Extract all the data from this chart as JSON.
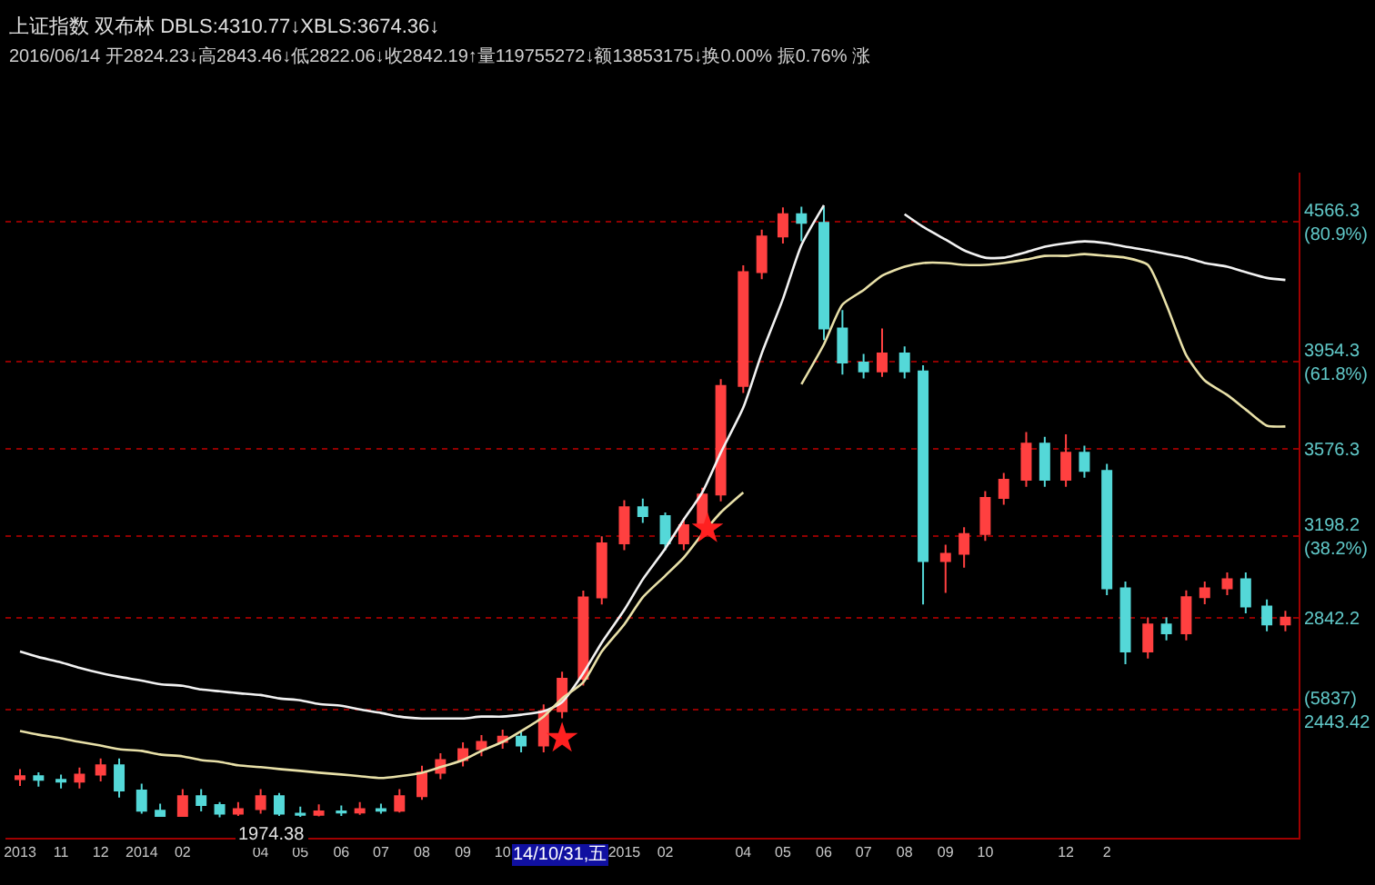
{
  "chart_data": {
    "type": "candlestick",
    "title": "上证指数 双布林 DBLS:4310.77↓XBLS:3674.36↓",
    "subtitle": "2016/06/14 开2824.23↓高2843.46↓低2822.06↓收2842.19↑量119755272↓额13853175↓换0.00% 振0.76% 涨",
    "x": [
      "2013-10-01",
      "2013-10-15",
      "2013-11-01",
      "2013-11-15",
      "2013-12-01",
      "2013-12-15",
      "2014-01-01",
      "2014-01-15",
      "2014-02-01",
      "2014-02-15",
      "2014-03-01",
      "2014-03-15",
      "2014-04-01",
      "2014-04-15",
      "2014-05-01",
      "2014-05-15",
      "2014-06-01",
      "2014-06-15",
      "2014-07-01",
      "2014-07-15",
      "2014-08-01",
      "2014-08-15",
      "2014-09-01",
      "2014-09-15",
      "2014-10-01",
      "2014-10-15",
      "2014-11-01",
      "2014-11-15",
      "2014-12-01",
      "2014-12-15",
      "2015-01-01",
      "2015-01-15",
      "2015-02-01",
      "2015-02-15",
      "2015-03-01",
      "2015-03-15",
      "2015-04-01",
      "2015-04-15",
      "2015-05-01",
      "2015-05-15",
      "2015-06-01",
      "2015-06-15",
      "2015-07-01",
      "2015-07-15",
      "2015-08-01",
      "2015-08-15",
      "2015-09-01",
      "2015-09-15",
      "2015-10-01",
      "2015-10-15",
      "2015-11-01",
      "2015-11-15",
      "2015-12-01",
      "2015-12-15",
      "2016-01-01",
      "2016-01-15",
      "2016-02-01",
      "2016-02-15",
      "2016-03-01",
      "2016-03-15",
      "2016-04-01",
      "2016-04-15",
      "2016-05-01",
      "2016-05-15"
    ],
    "ohlc": [
      [
        2140,
        2183,
        2110,
        2153
      ],
      [
        2153,
        2170,
        2107,
        2137
      ],
      [
        2137,
        2160,
        2099,
        2129
      ],
      [
        2129,
        2190,
        2099,
        2160
      ],
      [
        2160,
        2230,
        2130,
        2200
      ],
      [
        2200,
        2230,
        2060,
        2090
      ],
      [
        2090,
        2120,
        1990,
        2003
      ],
      [
        2003,
        2033,
        1976,
        1980
      ],
      [
        1980,
        2096,
        1976,
        2066
      ],
      [
        2066,
        2096,
        2000,
        2027
      ],
      [
        2027,
        2040,
        1974.38,
        1990
      ],
      [
        1990,
        2040,
        1980,
        2010
      ],
      [
        2010,
        2096,
        1990,
        2066
      ],
      [
        2066,
        2080,
        1980,
        1990
      ],
      [
        1990,
        2020,
        1976,
        1985
      ],
      [
        1985,
        2030,
        1978,
        2000
      ],
      [
        2000,
        2025,
        1980,
        1995
      ],
      [
        1995,
        2040,
        1985,
        2010
      ],
      [
        2010,
        2033,
        1990,
        2003
      ],
      [
        2003,
        2096,
        1995,
        2066
      ],
      [
        2066,
        2198,
        2050,
        2168
      ],
      [
        2168,
        2253,
        2140,
        2223
      ],
      [
        2223,
        2300,
        2195,
        2270
      ],
      [
        2270,
        2332,
        2240,
        2302
      ],
      [
        2302,
        2355,
        2272,
        2325
      ],
      [
        2325,
        2345,
        2256,
        2286
      ],
      [
        2286,
        2465,
        2256,
        2435
      ],
      [
        2435,
        2607,
        2405,
        2577
      ],
      [
        2577,
        2960,
        2547,
        2930
      ],
      [
        2930,
        3196,
        2900,
        3166
      ],
      [
        3166,
        3353,
        3136,
        3323
      ],
      [
        3323,
        3360,
        3254,
        3284
      ],
      [
        3284,
        3300,
        3136,
        3166
      ],
      [
        3166,
        3275,
        3136,
        3245
      ],
      [
        3245,
        3408,
        3215,
        3378
      ],
      [
        3378,
        3880,
        3348,
        3850
      ],
      [
        3850,
        4375,
        3820,
        4345
      ],
      [
        4345,
        4530,
        4315,
        4500
      ],
      [
        4500,
        4627,
        4470,
        4597
      ],
      [
        4597,
        4630,
        4480,
        4560
      ],
      [
        4560,
        4630,
        4050,
        4100
      ],
      [
        4100,
        4180,
        3900,
        3952
      ],
      [
        3952,
        3990,
        3883,
        3913
      ],
      [
        3913,
        4100,
        3890,
        3992
      ],
      [
        3992,
        4022,
        3883,
        3913
      ],
      [
        3913,
        3940,
        2900,
        3088
      ],
      [
        3088,
        3160,
        2950,
        3120
      ],
      [
        3120,
        3236,
        3060,
        3206
      ],
      [
        3206,
        3393,
        3176,
        3363
      ],
      [
        3363,
        3472,
        3333,
        3442
      ],
      [
        3442,
        3650,
        3412,
        3599
      ],
      [
        3599,
        3629,
        3412,
        3442
      ],
      [
        3442,
        3640,
        3412,
        3560
      ],
      [
        3560,
        3590,
        3451,
        3481
      ],
      [
        3481,
        3511,
        2940,
        2970
      ],
      [
        2970,
        3000,
        2640,
        2695
      ],
      [
        2695,
        2843,
        2665,
        2813
      ],
      [
        2813,
        2843,
        2744,
        2774
      ],
      [
        2774,
        2961,
        2744,
        2931
      ],
      [
        2931,
        3000,
        2901,
        2970
      ],
      [
        2970,
        3039,
        2940,
        3009
      ],
      [
        3009,
        3039,
        2861,
        2891
      ],
      [
        2891,
        2921,
        2783,
        2813
      ],
      [
        2813,
        2872,
        2783,
        2842.19
      ]
    ],
    "colors": [
      "#ff4040",
      "#54d8d8",
      "#54d8d8",
      "#ff4040",
      "#ff4040",
      "#54d8d8",
      "#54d8d8",
      "#54d8d8",
      "#ff4040",
      "#54d8d8",
      "#54d8d8",
      "#ff4040",
      "#ff4040",
      "#54d8d8",
      "#54d8d8",
      "#ff4040",
      "#54d8d8",
      "#ff4040",
      "#54d8d8",
      "#ff4040",
      "#ff4040",
      "#ff4040",
      "#ff4040",
      "#ff4040",
      "#ff4040",
      "#54d8d8",
      "#ff4040",
      "#ff4040",
      "#ff4040",
      "#ff4040",
      "#ff4040",
      "#54d8d8",
      "#54d8d8",
      "#ff4040",
      "#ff4040",
      "#ff4040",
      "#ff4040",
      "#ff4040",
      "#ff4040",
      "#54d8d8",
      "#54d8d8",
      "#54d8d8",
      "#54d8d8",
      "#ff4040",
      "#54d8d8",
      "#54d8d8",
      "#ff4040",
      "#ff4040",
      "#ff4040",
      "#ff4040",
      "#ff4040",
      "#54d8d8",
      "#ff4040",
      "#54d8d8",
      "#54d8d8",
      "#54d8d8",
      "#ff4040",
      "#54d8d8",
      "#ff4040",
      "#ff4040",
      "#ff4040",
      "#54d8d8",
      "#54d8d8",
      "#ff4040"
    ],
    "series": [
      {
        "type": "line",
        "color": "#f2f2f2",
        "values": [
          2695,
          2671,
          2648,
          2624,
          2601,
          2585,
          2569,
          2553,
          2546,
          2530,
          2522,
          2514,
          2506,
          2491,
          2483,
          2467,
          2459,
          2443,
          2428,
          2412,
          2404,
          2404,
          2404,
          2412,
          2412,
          2420,
          2435,
          2475,
          2601,
          2734,
          2876,
          3009,
          3143,
          3269,
          3387,
          3560,
          3756,
          3992,
          4228,
          4463,
          4636,
          null,
          null,
          null,
          4597,
          4542,
          4487,
          4440,
          4408,
          4408,
          4432,
          4456,
          4471,
          4479,
          4471,
          4456,
          4440,
          4424,
          4408,
          4385,
          4369,
          4345,
          4320,
          4311
        ]
      },
      {
        "type": "line",
        "color": "#e8e0a8",
        "values": [
          2349,
          2333,
          2318,
          2302,
          2286,
          2270,
          2263,
          2247,
          2239,
          2223,
          2215,
          2200,
          2192,
          2184,
          2176,
          2168,
          2160,
          2153,
          2145,
          2153,
          2168,
          2192,
          2223,
          2263,
          2302,
          2349,
          2412,
          2491,
          2561,
          2695,
          2813,
          2931,
          3025,
          3104,
          3206,
          3300,
          3387,
          null,
          null,
          3858,
          4031,
          4204,
          4267,
          4330,
          4369,
          4385,
          4385,
          4377,
          4377,
          4385,
          4400,
          4416,
          4416,
          4424,
          4416,
          4408,
          4377,
          4204,
          3984,
          3874,
          3811,
          3748,
          3677,
          3674
        ]
      },
      {
        "type": "scatter",
        "color": "#ff2020",
        "marker": "star",
        "x": [
          "2014-11-15",
          "2015-03-05"
        ],
        "values": [
          2318,
          3229
        ]
      }
    ],
    "xlim": [
      "2013-09-20",
      "2016-05-25"
    ],
    "xticks": [
      {
        "value": "2013-10-01",
        "label": "2013"
      },
      {
        "value": "2013-11-01",
        "label": "11"
      },
      {
        "value": "2013-12-01",
        "label": "12"
      },
      {
        "value": "2014-01-01",
        "label": "2014"
      },
      {
        "value": "2014-02-01",
        "label": "02"
      },
      {
        "value": "2014-04-01",
        "label": "04"
      },
      {
        "value": "2014-05-01",
        "label": "05"
      },
      {
        "value": "2014-06-01",
        "label": "06"
      },
      {
        "value": "2014-07-01",
        "label": "07"
      },
      {
        "value": "2014-08-01",
        "label": "08"
      },
      {
        "value": "2014-09-01",
        "label": "09"
      },
      {
        "value": "2014-10-01",
        "label": "10"
      },
      {
        "value": "2015-01-01",
        "label": "2015"
      },
      {
        "value": "2015-02-01",
        "label": "02"
      },
      {
        "value": "2015-04-01",
        "label": "04"
      },
      {
        "value": "2015-05-01",
        "label": "05"
      },
      {
        "value": "2015-06-01",
        "label": "06"
      },
      {
        "value": "2015-07-01",
        "label": "07"
      },
      {
        "value": "2015-08-01",
        "label": "08"
      },
      {
        "value": "2015-09-01",
        "label": "09"
      },
      {
        "value": "2015-10-01",
        "label": "10"
      },
      {
        "value": "2015-12-01",
        "label": "12"
      },
      {
        "value": "2016-01-01",
        "label": "2"
      }
    ],
    "ylim": [
      1885,
      4778
    ],
    "yticks": [
      {
        "value": 2443.42,
        "label": "(5837)\n2443.42"
      },
      {
        "value": 2842.2,
        "label": "2842.2"
      },
      {
        "value": 3198.2,
        "label": "3198.2\n(38.2%)"
      },
      {
        "value": 3576.3,
        "label": "3576.3"
      },
      {
        "value": 3954.3,
        "label": "3954.3\n(61.8%)"
      },
      {
        "value": 4566.3,
        "label": "4566.3\n(80.9%)"
      }
    ],
    "grid": "y",
    "annotations": [
      {
        "text": "1974.38",
        "x": "2014-03-01",
        "y": 1974.38
      },
      "14/10/31,五"
    ]
  }
}
